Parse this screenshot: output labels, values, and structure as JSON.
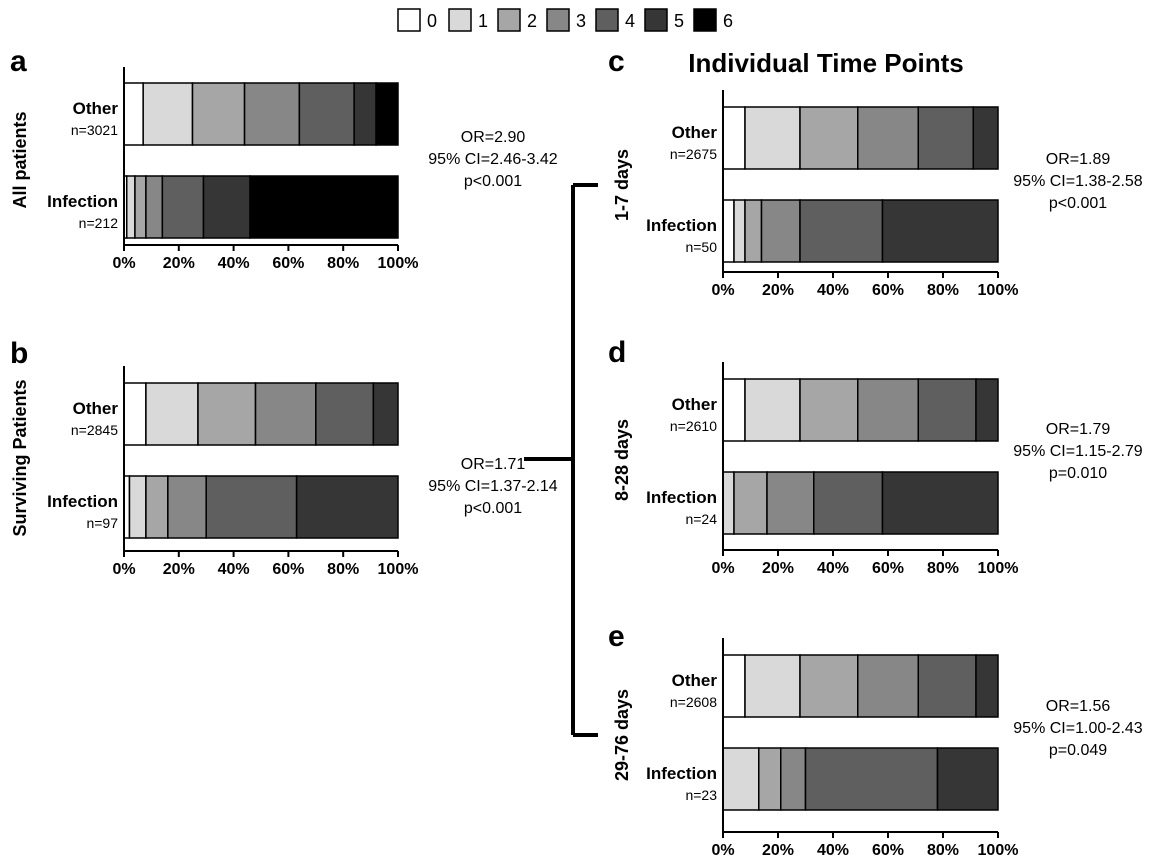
{
  "colors": {
    "0": "#ffffff",
    "1": "#d9d9d9",
    "2": "#a6a6a6",
    "3": "#878787",
    "4": "#5f5f5f",
    "5": "#363636",
    "6": "#000000"
  },
  "legend": [
    "0",
    "1",
    "2",
    "3",
    "4",
    "5",
    "6"
  ],
  "title_individual": "Individual Time Points",
  "chart_data": [
    {
      "type": "bar",
      "orientation": "horizontal-stacked",
      "panel": "a",
      "group_label": "All patients",
      "rows": [
        {
          "label": "Other",
          "n": "n=3021",
          "segments": [
            7,
            18,
            19,
            20,
            20,
            8,
            8
          ]
        },
        {
          "label": "Infection",
          "n": "n=212",
          "segments": [
            1,
            3,
            4,
            6,
            15,
            17,
            54
          ]
        }
      ],
      "x_ticks": [
        "0%",
        "20%",
        "40%",
        "60%",
        "80%",
        "100%"
      ],
      "xlim": [
        0,
        100
      ],
      "stats": [
        "OR=2.90",
        "95% CI=2.46-3.42",
        "p<0.001"
      ]
    },
    {
      "type": "bar",
      "orientation": "horizontal-stacked",
      "panel": "b",
      "group_label": "Surviving Patients",
      "rows": [
        {
          "label": "Other",
          "n": "n=2845",
          "segments": [
            8,
            19,
            21,
            22,
            21,
            9,
            0
          ]
        },
        {
          "label": "Infection",
          "n": "n=97",
          "segments": [
            2,
            6,
            8,
            14,
            33,
            37,
            0
          ]
        }
      ],
      "x_ticks": [
        "0%",
        "20%",
        "40%",
        "60%",
        "80%",
        "100%"
      ],
      "xlim": [
        0,
        100
      ],
      "stats": [
        "OR=1.71",
        "95% CI=1.37-2.14",
        "p<0.001"
      ]
    },
    {
      "type": "bar",
      "orientation": "horizontal-stacked",
      "panel": "c",
      "group_label": "1-7 days",
      "rows": [
        {
          "label": "Other",
          "n": "n=2675",
          "segments": [
            8,
            20,
            21,
            22,
            20,
            9,
            0
          ]
        },
        {
          "label": "Infection",
          "n": "n=50",
          "segments": [
            4,
            4,
            6,
            14,
            30,
            42,
            0
          ]
        }
      ],
      "x_ticks": [
        "0%",
        "20%",
        "40%",
        "60%",
        "80%",
        "100%"
      ],
      "xlim": [
        0,
        100
      ],
      "stats": [
        "OR=1.89",
        "95% CI=1.38-2.58",
        "p<0.001"
      ]
    },
    {
      "type": "bar",
      "orientation": "horizontal-stacked",
      "panel": "d",
      "group_label": "8-28 days",
      "rows": [
        {
          "label": "Other",
          "n": "n=2610",
          "segments": [
            8,
            20,
            21,
            22,
            21,
            8,
            0
          ]
        },
        {
          "label": "Infection",
          "n": "n=24",
          "segments": [
            0,
            4,
            12,
            17,
            25,
            42,
            0
          ]
        }
      ],
      "x_ticks": [
        "0%",
        "20%",
        "40%",
        "60%",
        "80%",
        "100%"
      ],
      "xlim": [
        0,
        100
      ],
      "stats": [
        "OR=1.79",
        "95% CI=1.15-2.79",
        "p=0.010"
      ]
    },
    {
      "type": "bar",
      "orientation": "horizontal-stacked",
      "panel": "e",
      "group_label": "29-76 days",
      "rows": [
        {
          "label": "Other",
          "n": "n=2608",
          "segments": [
            8,
            20,
            21,
            22,
            21,
            8,
            0
          ]
        },
        {
          "label": "Infection",
          "n": "n=23",
          "segments": [
            0,
            13,
            8,
            9,
            48,
            22,
            0
          ]
        }
      ],
      "x_ticks": [
        "0%",
        "20%",
        "40%",
        "60%",
        "80%",
        "100%"
      ],
      "xlim": [
        0,
        100
      ],
      "stats": [
        "OR=1.56",
        "95% CI=1.00-2.43",
        "p=0.049"
      ]
    }
  ]
}
